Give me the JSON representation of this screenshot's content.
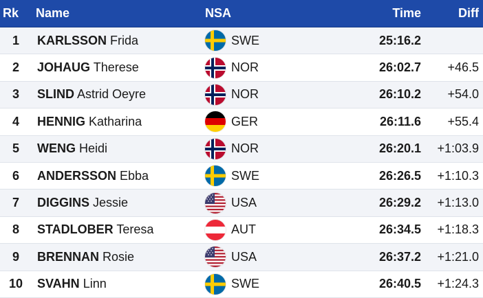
{
  "header": {
    "rank": "Rk",
    "name": "Name",
    "nsa": "NSA",
    "time": "Time",
    "diff": "Diff"
  },
  "rows": [
    {
      "rank": "1",
      "last": "KARLSSON",
      "first": "Frida",
      "nsa": "SWE",
      "time": "25:16.2",
      "diff": ""
    },
    {
      "rank": "2",
      "last": "JOHAUG",
      "first": "Therese",
      "nsa": "NOR",
      "time": "26:02.7",
      "diff": "+46.5"
    },
    {
      "rank": "3",
      "last": "SLIND",
      "first": "Astrid Oeyre",
      "nsa": "NOR",
      "time": "26:10.2",
      "diff": "+54.0"
    },
    {
      "rank": "4",
      "last": "HENNIG",
      "first": "Katharina",
      "nsa": "GER",
      "time": "26:11.6",
      "diff": "+55.4"
    },
    {
      "rank": "5",
      "last": "WENG",
      "first": "Heidi",
      "nsa": "NOR",
      "time": "26:20.1",
      "diff": "+1:03.9"
    },
    {
      "rank": "6",
      "last": "ANDERSSON",
      "first": "Ebba",
      "nsa": "SWE",
      "time": "26:26.5",
      "diff": "+1:10.3"
    },
    {
      "rank": "7",
      "last": "DIGGINS",
      "first": "Jessie",
      "nsa": "USA",
      "time": "26:29.2",
      "diff": "+1:13.0"
    },
    {
      "rank": "8",
      "last": "STADLOBER",
      "first": "Teresa",
      "nsa": "AUT",
      "time": "26:34.5",
      "diff": "+1:18.3"
    },
    {
      "rank": "9",
      "last": "BRENNAN",
      "first": "Rosie",
      "nsa": "USA",
      "time": "26:37.2",
      "diff": "+1:21.0"
    },
    {
      "rank": "10",
      "last": "SVAHN",
      "first": "Linn",
      "nsa": "SWE",
      "time": "26:40.5",
      "diff": "+1:24.3"
    }
  ],
  "colors": {
    "header_bg": "#1e4aa8",
    "row_alt_bg": "#f2f4f8"
  }
}
